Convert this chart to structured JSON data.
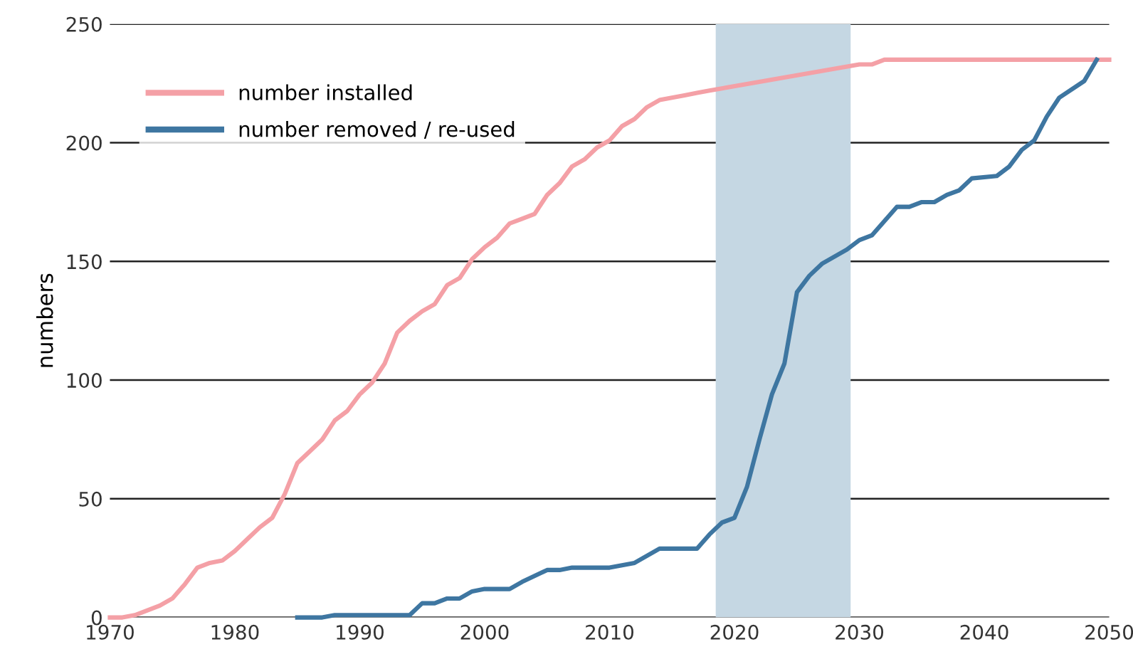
{
  "chart_data": {
    "type": "line",
    "ylabel": "numbers",
    "xlim": [
      1970,
      2050
    ],
    "xticks": [
      1970,
      1980,
      1990,
      2000,
      2010,
      2020,
      2030,
      2040,
      2050
    ],
    "ylim": [
      0,
      250
    ],
    "yticks": [
      0,
      50,
      100,
      150,
      200,
      250
    ],
    "grid": "y",
    "legend": "top left",
    "marker": "none",
    "line_style": "solid",
    "bands": [
      {
        "axis": "x",
        "from": 2018.5,
        "to": 2029.3,
        "color": "#c5d7e3"
      }
    ],
    "series": [
      {
        "name": "number installed",
        "color": "#f4a0a6",
        "x": [
          1970,
          1971,
          1972,
          1973,
          1974,
          1975,
          1976,
          1977,
          1978,
          1979,
          1980,
          1981,
          1982,
          1983,
          1984,
          1985,
          1986,
          1987,
          1988,
          1989,
          1990,
          1991,
          1992,
          1993,
          1994,
          1995,
          1996,
          1997,
          1998,
          1999,
          2000,
          2001,
          2002,
          2003,
          2004,
          2005,
          2006,
          2007,
          2008,
          2009,
          2010,
          2011,
          2012,
          2013,
          2014,
          2015,
          2016,
          2017,
          2018,
          2030,
          2031,
          2032,
          2050
        ],
        "values": [
          0,
          0,
          1,
          3,
          5,
          8,
          14,
          21,
          23,
          24,
          28,
          33,
          38,
          42,
          52,
          65,
          70,
          75,
          83,
          87,
          94,
          99,
          107,
          120,
          125,
          129,
          132,
          140,
          143,
          151,
          156,
          160,
          166,
          168,
          170,
          178,
          183,
          190,
          193,
          198,
          201,
          207,
          210,
          215,
          218,
          219,
          220,
          221,
          222,
          233,
          233,
          235,
          235
        ]
      },
      {
        "name": "number removed / re-used",
        "color": "#3e76a1",
        "x": [
          1985,
          1987,
          1988,
          1994,
          1995,
          1996,
          1997,
          1998,
          1999,
          2000,
          2002,
          2003,
          2005,
          2006,
          2007,
          2010,
          2012,
          2014,
          2017,
          2018,
          2019,
          2020,
          2021,
          2022,
          2023,
          2024,
          2025,
          2026,
          2027,
          2029,
          2030,
          2031,
          2033,
          2034,
          2035,
          2036,
          2037,
          2038,
          2039,
          2041,
          2042,
          2043,
          2044,
          2045,
          2046,
          2048,
          2049
        ],
        "values": [
          0,
          0,
          1,
          1,
          6,
          6,
          8,
          8,
          11,
          12,
          12,
          15,
          20,
          20,
          21,
          21,
          23,
          29,
          29,
          35,
          40,
          42,
          55,
          75,
          94,
          107,
          137,
          144,
          149,
          155,
          159,
          161,
          173,
          173,
          175,
          175,
          178,
          180,
          185,
          186,
          190,
          197,
          201,
          211,
          219,
          226,
          235
        ]
      }
    ]
  }
}
